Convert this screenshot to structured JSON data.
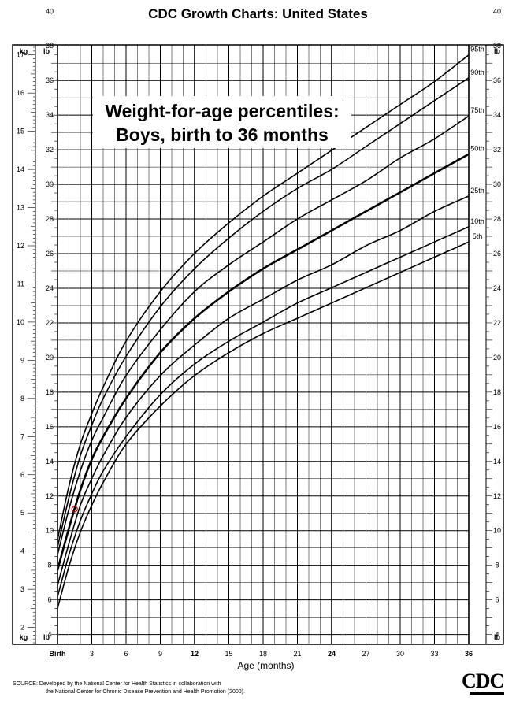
{
  "page": {
    "title": "CDC Growth Charts: United States",
    "source_line1": "SOURCE: Developed by the National Center for Health Statistics in collaboration with",
    "source_line2": "the National Center for Chronic Disease Prevention and Health Promotion (2000).",
    "logo_text": "CDC"
  },
  "chart_data": {
    "type": "line",
    "title_line1": "Weight-for-age percentiles:",
    "title_line2": "Boys, birth to 36 months",
    "xlabel": "Age (months)",
    "x_unit_birth_label": "Birth",
    "y_unit_left": "kg",
    "y_unit_right": "lb",
    "xlim": [
      0,
      36
    ],
    "ylim_kg": [
      1.6,
      17.2
    ],
    "x_ticks": [
      0,
      3,
      6,
      9,
      12,
      15,
      18,
      21,
      24,
      27,
      30,
      33,
      36
    ],
    "x_bold_ticks": [
      0,
      12,
      24,
      36
    ],
    "kg_ticks": [
      2,
      3,
      4,
      5,
      6,
      7,
      8,
      9,
      10,
      11,
      12,
      13,
      14,
      15,
      16,
      17
    ],
    "lb_ticks": [
      4,
      6,
      8,
      10,
      12,
      14,
      16,
      18,
      20,
      22,
      24,
      26,
      28,
      30,
      32,
      34,
      36,
      38,
      40
    ],
    "grid": true,
    "marked_point": {
      "x": 1.5,
      "y": 5.1,
      "color": "#cc0000"
    },
    "series": [
      {
        "name": "95th",
        "x": [
          0,
          1,
          2,
          3,
          4,
          6,
          9,
          12,
          15,
          18,
          21,
          24,
          27,
          30,
          33,
          36
        ],
        "values": [
          4.3,
          5.7,
          6.8,
          7.6,
          8.3,
          9.5,
          10.8,
          11.8,
          12.6,
          13.3,
          13.9,
          14.5,
          15.1,
          15.7,
          16.3,
          17.0
        ]
      },
      {
        "name": "90th",
        "x": [
          0,
          1,
          2,
          3,
          4,
          6,
          9,
          12,
          15,
          18,
          21,
          24,
          27,
          30,
          33,
          36
        ],
        "values": [
          4.1,
          5.4,
          6.5,
          7.3,
          8.0,
          9.1,
          10.4,
          11.4,
          12.2,
          12.9,
          13.5,
          14.0,
          14.6,
          15.2,
          15.8,
          16.4
        ]
      },
      {
        "name": "75th",
        "x": [
          0,
          1,
          2,
          3,
          4,
          6,
          9,
          12,
          15,
          18,
          21,
          24,
          27,
          30,
          33,
          36
        ],
        "values": [
          3.9,
          5.1,
          6.1,
          6.9,
          7.5,
          8.6,
          9.8,
          10.8,
          11.5,
          12.1,
          12.7,
          13.2,
          13.7,
          14.3,
          14.8,
          15.4
        ]
      },
      {
        "name": "50th",
        "bold": true,
        "x": [
          0,
          1,
          2,
          3,
          4,
          6,
          9,
          12,
          15,
          18,
          21,
          24,
          27,
          30,
          33,
          36
        ],
        "values": [
          3.5,
          4.6,
          5.6,
          6.4,
          7.0,
          8.0,
          9.2,
          10.1,
          10.8,
          11.4,
          11.9,
          12.4,
          12.9,
          13.4,
          13.9,
          14.4
        ]
      },
      {
        "name": "25th",
        "x": [
          0,
          1,
          2,
          3,
          4,
          6,
          9,
          12,
          15,
          18,
          21,
          24,
          27,
          30,
          33,
          36
        ],
        "values": [
          3.1,
          4.2,
          5.2,
          5.9,
          6.5,
          7.5,
          8.6,
          9.4,
          10.1,
          10.6,
          11.1,
          11.5,
          12.0,
          12.4,
          12.9,
          13.3
        ]
      },
      {
        "name": "10th",
        "x": [
          0,
          1,
          2,
          3,
          4,
          6,
          9,
          12,
          15,
          18,
          21,
          24,
          27,
          30,
          33,
          36
        ],
        "values": [
          2.8,
          3.9,
          4.8,
          5.5,
          6.1,
          7.0,
          8.1,
          8.9,
          9.5,
          10.0,
          10.5,
          10.9,
          11.3,
          11.7,
          12.1,
          12.5
        ]
      },
      {
        "name": "5th",
        "x": [
          0,
          1,
          2,
          3,
          4,
          6,
          9,
          12,
          15,
          18,
          21,
          24,
          27,
          30,
          33,
          36
        ],
        "values": [
          2.5,
          3.6,
          4.5,
          5.2,
          5.8,
          6.8,
          7.8,
          8.6,
          9.2,
          9.7,
          10.1,
          10.5,
          10.9,
          11.3,
          11.7,
          12.1
        ]
      }
    ]
  }
}
